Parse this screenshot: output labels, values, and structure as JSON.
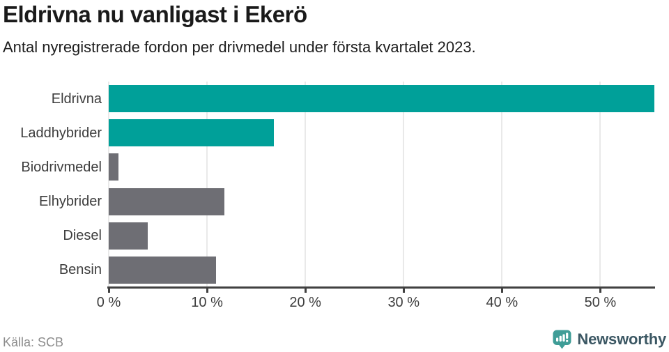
{
  "header": {
    "title": "Eldrivna nu vanligast i Ekerö",
    "subtitle": "Antal nyregistrerade fordon per drivmedel under första kvartalet 2023."
  },
  "chart_data": {
    "type": "bar",
    "orientation": "horizontal",
    "categories": [
      "Eldrivna",
      "Laddhybrider",
      "Biodrivmedel",
      "Elhybrider",
      "Diesel",
      "Bensin"
    ],
    "values": [
      55.5,
      16.8,
      1.0,
      11.8,
      4.0,
      10.9
    ],
    "unit": "%",
    "bar_colors": [
      "#00a099",
      "#00a099",
      "#6e6e74",
      "#6e6e74",
      "#6e6e74",
      "#6e6e74"
    ],
    "xlim": [
      0,
      55.5
    ],
    "x_ticks": [
      0,
      10,
      20,
      30,
      40,
      50
    ],
    "x_tick_labels": [
      "0 %",
      "10 %",
      "20 %",
      "30 %",
      "40 %",
      "50 %"
    ],
    "grid": true,
    "legend": false,
    "title": "Eldrivna nu vanligast i Ekerö"
  },
  "footer": {
    "source": "Källa: SCB",
    "brand": "Newsworthy"
  },
  "colors": {
    "accent_teal": "#00a099",
    "bar_gray": "#6e6e74",
    "grid": "#e9e9e9",
    "axis": "#414141",
    "text_dark": "#1a1a1a",
    "text_label": "#3d3d3d",
    "text_muted": "#8c8c8c",
    "logo_teal": "#3f9d97",
    "logo_text": "#3b5763"
  }
}
